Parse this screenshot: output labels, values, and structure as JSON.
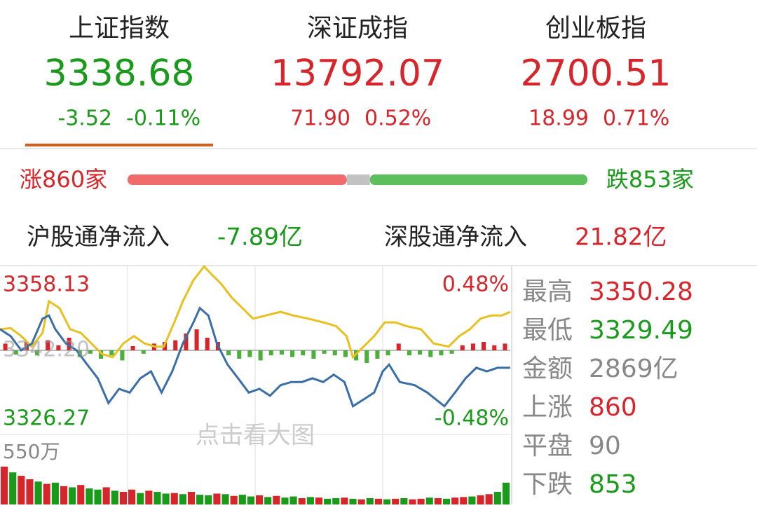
{
  "indices": [
    {
      "name": "上证指数",
      "value": "3338.68",
      "change": "-3.52",
      "pct": "-0.11%",
      "trend": "down",
      "selected": true
    },
    {
      "name": "深证成指",
      "value": "13792.07",
      "change": "71.90",
      "pct": "0.52%",
      "trend": "up",
      "selected": false
    },
    {
      "name": "创业板指",
      "value": "2700.51",
      "change": "18.99",
      "pct": "0.71%",
      "trend": "up",
      "selected": false
    }
  ],
  "breadth": {
    "up_label": "涨860家",
    "down_label": "跌853家"
  },
  "flows": [
    {
      "label": "沪股通净流入",
      "value": "-7.89亿",
      "trend": "down"
    },
    {
      "label": "深股通净流入",
      "value": "21.82亿",
      "trend": "up"
    }
  ],
  "intraday": {
    "top_label": "3358.13",
    "bottom_label": "3326.27",
    "mid_label": "3342.20",
    "top_pct": "0.48%",
    "bottom_pct": "-0.48%",
    "overlay": "点击看大图",
    "ylim": [
      3326.27,
      3358.13
    ],
    "xlim": [
      0,
      240
    ],
    "price": {
      "color": "#3a6ea8",
      "x": [
        0,
        5,
        10,
        15,
        20,
        23,
        26,
        31,
        36,
        41,
        46,
        51,
        56,
        61,
        66,
        71,
        76,
        81,
        86,
        91,
        94,
        98,
        102,
        107,
        112,
        117,
        122,
        127,
        132,
        137,
        142,
        147,
        152,
        157,
        162,
        166,
        171,
        176,
        180,
        183,
        188,
        195,
        201,
        209,
        214,
        219,
        224,
        229,
        234,
        240
      ],
      "values": [
        3346.2,
        3344.9,
        3342.2,
        3343.5,
        3348.2,
        3348.8,
        3346.2,
        3343.5,
        3342.2,
        3339.5,
        3336.9,
        3332.2,
        3334.9,
        3334.2,
        3336.9,
        3338.2,
        3334.2,
        3338.2,
        3343.5,
        3347.5,
        3350.2,
        3348.8,
        3343.5,
        3339.5,
        3336.9,
        3334.2,
        3334.9,
        3333.6,
        3335.6,
        3336.2,
        3336.2,
        3336.9,
        3336.2,
        3337.6,
        3336.2,
        3331.6,
        3332.9,
        3334.2,
        3338.2,
        3339.5,
        3336.2,
        3335.6,
        3334.2,
        3331.6,
        3334.2,
        3336.9,
        3338.9,
        3338.2,
        3338.9,
        3338.9
      ]
    },
    "average": {
      "color": "#e8c020",
      "x": [
        0,
        5,
        10,
        15,
        20,
        23,
        28,
        33,
        38,
        43,
        48,
        53,
        58,
        63,
        68,
        73,
        77,
        82,
        86,
        91,
        96,
        99,
        104,
        109,
        114,
        119,
        125,
        132,
        138,
        145,
        152,
        158,
        163,
        166,
        171,
        176,
        181,
        186,
        191,
        198,
        204,
        211,
        216,
        221,
        226,
        231,
        236,
        240
      ],
      "values": [
        3346.2,
        3346.4,
        3344.9,
        3342.9,
        3345.5,
        3351.5,
        3350.2,
        3346.2,
        3345.5,
        3343.5,
        3341.5,
        3340.9,
        3343.5,
        3344.9,
        3343.5,
        3342.9,
        3342.9,
        3347.5,
        3351.5,
        3355.5,
        3358.1,
        3356.8,
        3354.8,
        3352.2,
        3350.2,
        3348.2,
        3348.8,
        3349.5,
        3348.8,
        3348.2,
        3347.5,
        3346.8,
        3344.9,
        3340.9,
        3342.9,
        3344.9,
        3347.5,
        3347.5,
        3346.8,
        3346.2,
        3343.5,
        3342.9,
        3344.9,
        3346.2,
        3348.2,
        3348.8,
        3348.8,
        3349.5
      ]
    },
    "diff_bars": {
      "ylim": [
        -25,
        25
      ],
      "up_color": "#d6252b",
      "down_color": "#4caf3c",
      "values": [
        8,
        -5,
        10,
        -6,
        12,
        6,
        15,
        -8,
        -4,
        -10,
        -6,
        -12,
        5,
        -4,
        8,
        10,
        12,
        20,
        25,
        15,
        10,
        -6,
        -10,
        -8,
        -12,
        -6,
        -5,
        -8,
        -6,
        -10,
        -4,
        -6,
        -8,
        -12,
        -15,
        -10,
        -6,
        8,
        -6,
        -5,
        -8,
        -6,
        -4,
        6,
        8,
        10,
        6,
        8
      ]
    },
    "volume": {
      "max_label": "550万",
      "ylim": [
        0,
        550
      ],
      "up_color": "#d6252b",
      "down_color": "#1a9a1a",
      "values": [
        330,
        280,
        250,
        220,
        200,
        180,
        190,
        160,
        150,
        170,
        140,
        130,
        150,
        120,
        110,
        130,
        100,
        120,
        110,
        95,
        100,
        90,
        110,
        85,
        80,
        95,
        90,
        75,
        85,
        70,
        80,
        65,
        75,
        60,
        70,
        55,
        65,
        60,
        50,
        55,
        60,
        50,
        45,
        55,
        50,
        45,
        50,
        55,
        45,
        50,
        60,
        55,
        50,
        60,
        65,
        70,
        80,
        90,
        110,
        190
      ],
      "up": [
        true,
        false,
        true,
        true,
        false,
        true,
        false,
        true,
        false,
        true,
        false,
        false,
        true,
        false,
        true,
        true,
        false,
        true,
        false,
        false,
        true,
        false,
        true,
        false,
        false,
        true,
        false,
        true,
        false,
        false,
        true,
        false,
        true,
        false,
        false,
        true,
        false,
        true,
        false,
        false,
        true,
        false,
        true,
        false,
        true,
        false,
        true,
        false,
        true,
        true,
        false,
        true,
        false,
        true,
        true,
        false,
        true,
        true,
        false,
        false
      ]
    }
  },
  "stats": {
    "high_label": "最高",
    "high": 3350.28,
    "low_label": "最低",
    "low": 3329.49,
    "amount_label": "金额",
    "amount": "2869亿",
    "up_label": "上涨",
    "up": 860,
    "flat_label": "平盘",
    "flat": 90,
    "down_label": "下跌",
    "down": 853
  }
}
